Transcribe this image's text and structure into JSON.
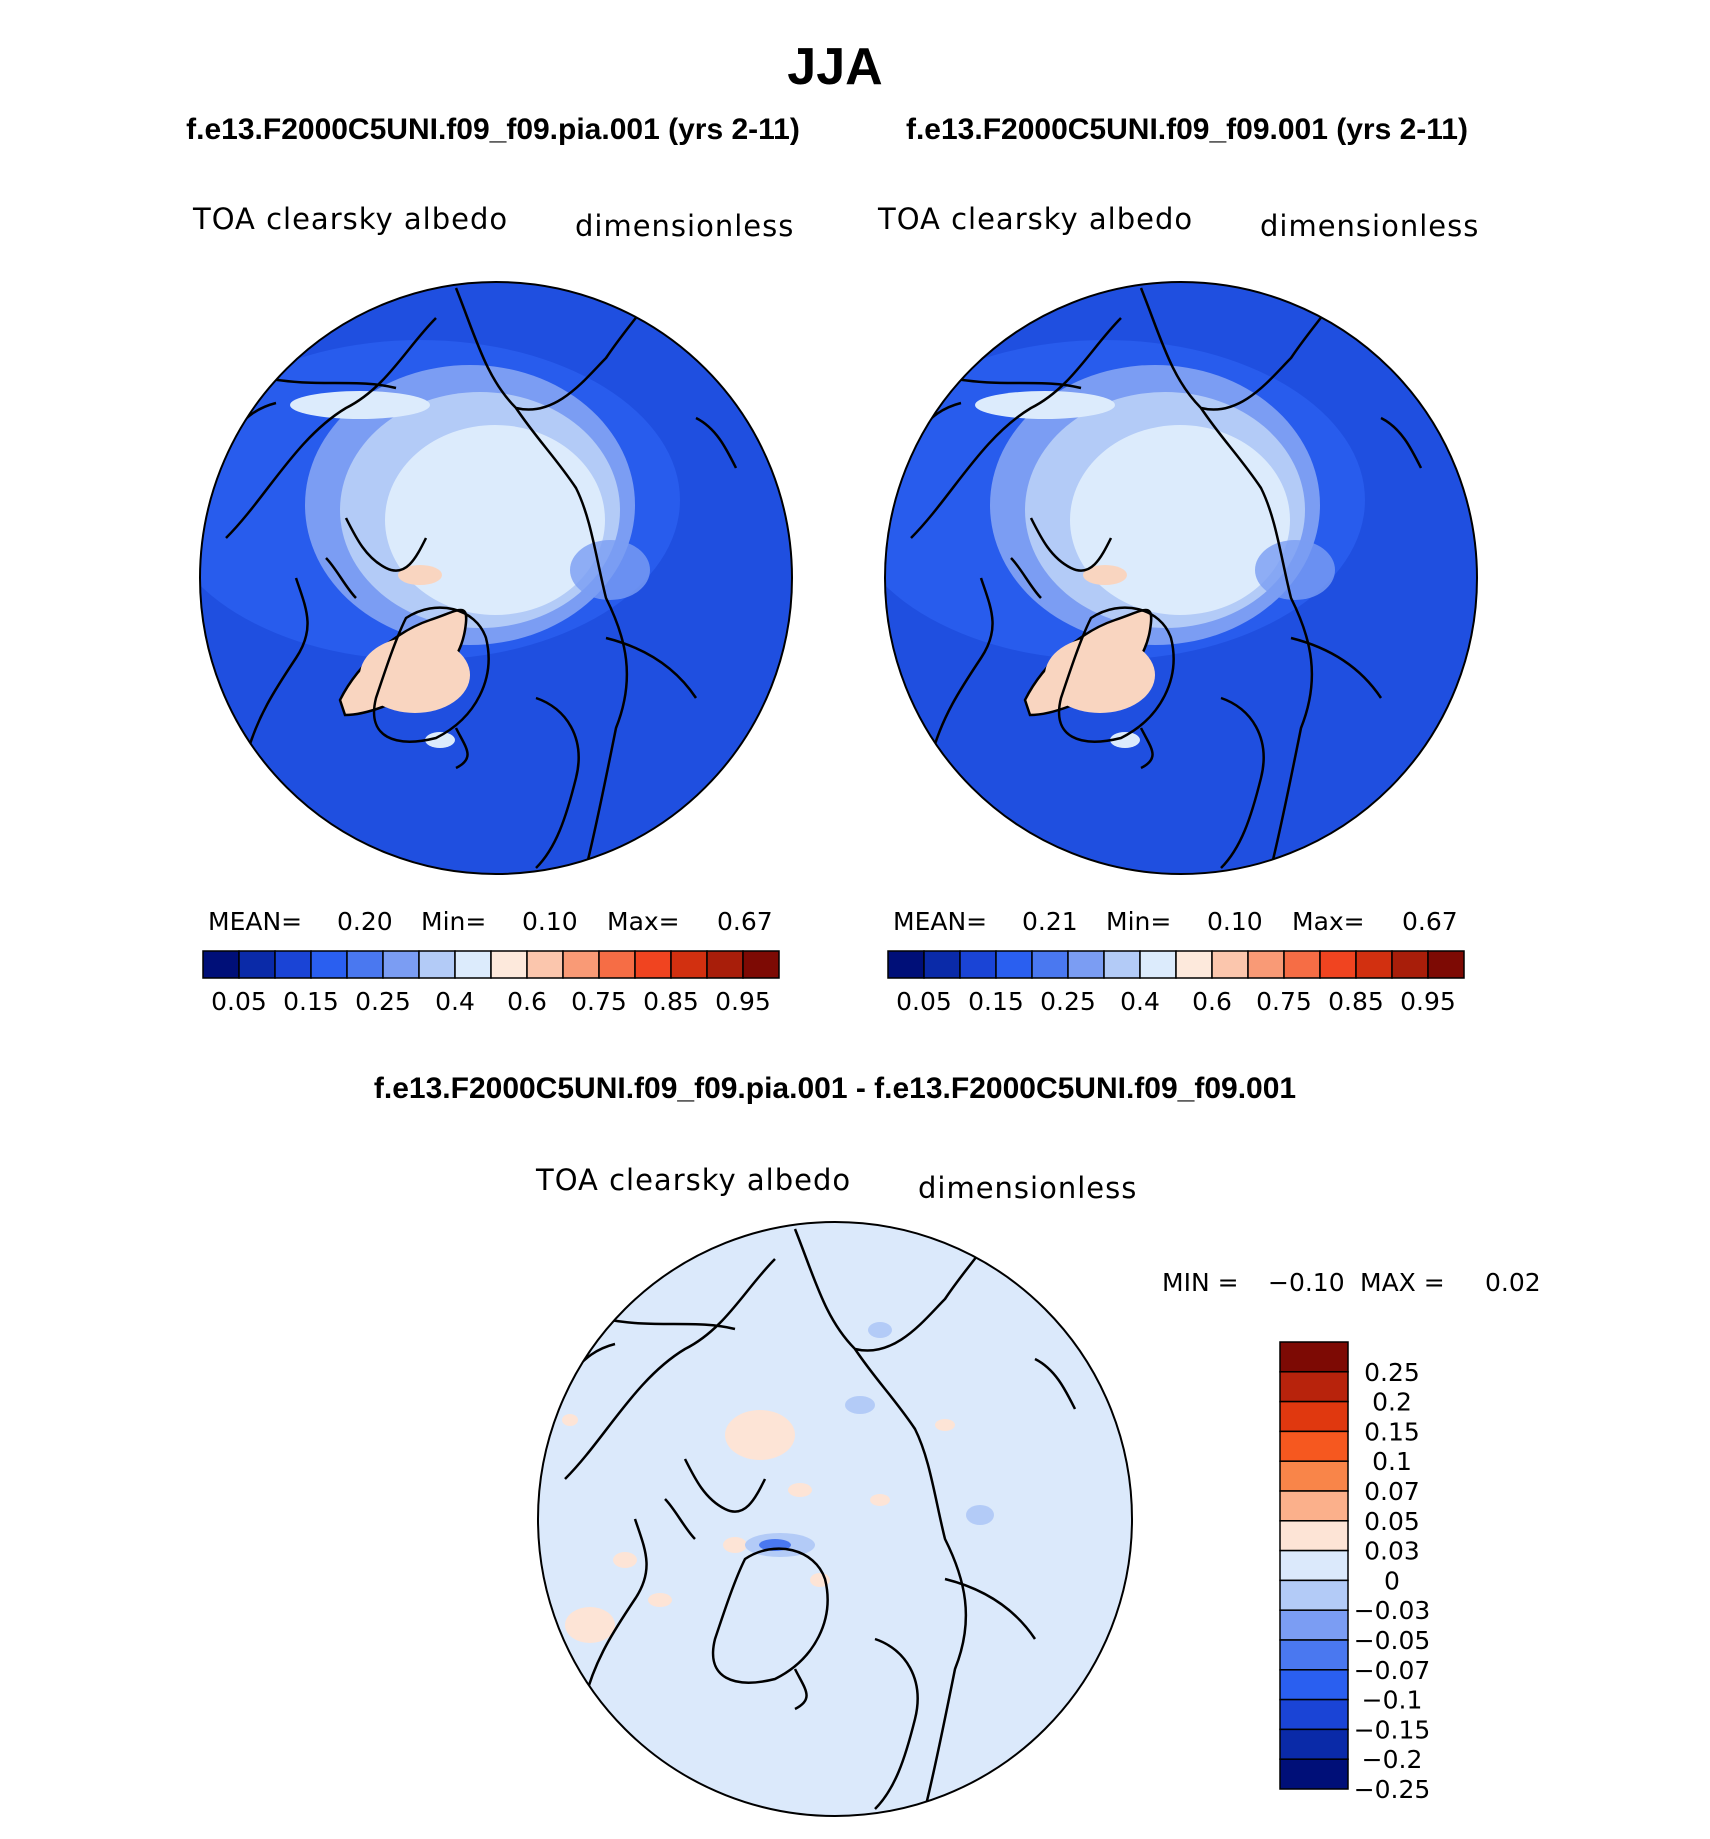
{
  "season": "JJA",
  "colors": {
    "low": "#1f4fe0",
    "mid": "#4a78f0",
    "light": "#b7cdf8",
    "pale": "#dbe9fb",
    "greenland": "#f9d5c0",
    "coast": "#000000"
  },
  "panels": [
    {
      "case_title": "f.e13.F2000C5UNI.f09_f09.pia.001 (yrs 2-11)",
      "variable": "TOA clearsky albedo",
      "units": "dimensionless",
      "stats": {
        "mean_label": "MEAN=",
        "mean": "0.20",
        "min_label": "Min=",
        "min": "0.10",
        "max_label": "Max=",
        "max": "0.67"
      }
    },
    {
      "case_title": "f.e13.F2000C5UNI.f09_f09.001 (yrs 2-11)",
      "variable": "TOA clearsky albedo",
      "units": "dimensionless",
      "stats": {
        "mean_label": "MEAN=",
        "mean": "0.21",
        "min_label": "Min=",
        "min": "0.10",
        "max_label": "Max=",
        "max": "0.67"
      }
    }
  ],
  "colorbar": {
    "colors": [
      "#000f78",
      "#0a2aa8",
      "#1a44d6",
      "#2a5ff0",
      "#4a78f0",
      "#7b9df3",
      "#b3cbf7",
      "#dcebfc",
      "#fde9dc",
      "#fbc6ad",
      "#f99a76",
      "#f66d45",
      "#f04420",
      "#d23010",
      "#a81e0a",
      "#7d0a04"
    ],
    "labels": [
      "0.05",
      "0.15",
      "0.25",
      "0.4",
      "0.6",
      "0.75",
      "0.85",
      "0.95"
    ]
  },
  "difference": {
    "title": "f.e13.F2000C5UNI.f09_f09.pia.001 - f.e13.F2000C5UNI.f09_f09.001",
    "variable": "TOA clearsky albedo",
    "units": "dimensionless",
    "min_label": "MIN =",
    "min": "−0.10",
    "max_label": "MAX =",
    "max": "0.02",
    "colorbar": {
      "colors": [
        "#7d0a04",
        "#b8230c",
        "#e0380f",
        "#f6581f",
        "#f98549",
        "#fbb08b",
        "#fde4d6",
        "#dbe9fb",
        "#b3cbf7",
        "#7b9df3",
        "#4a78f0",
        "#2a5ff0",
        "#1a44d6",
        "#0a2aa8",
        "#000f78"
      ],
      "labels": [
        "0.25",
        "0.2",
        "0.15",
        "0.1",
        "0.07",
        "0.05",
        "0.03",
        "0",
        "−0.03",
        "−0.05",
        "−0.07",
        "−0.1",
        "−0.15",
        "−0.2",
        "−0.25"
      ]
    }
  }
}
